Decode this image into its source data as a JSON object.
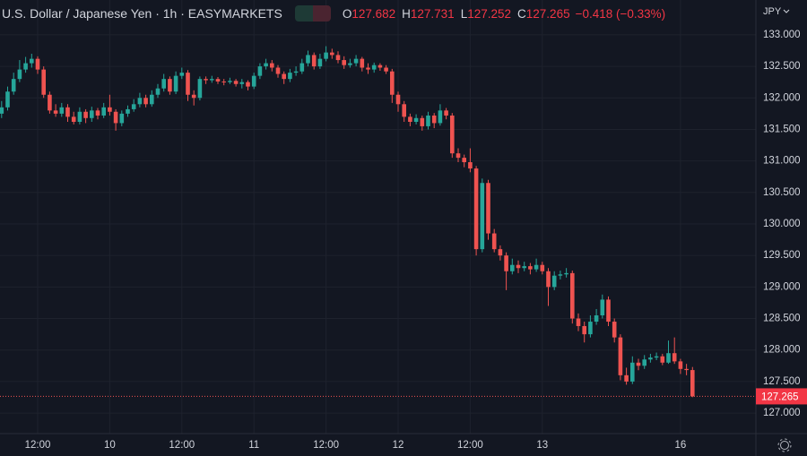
{
  "chart_data": {
    "type": "candlestick",
    "title": "U.S. Dollar / Japanese Yen · 1h · EASYMARKETS",
    "ohlc_letters": [
      "O",
      "H",
      "L",
      "C"
    ],
    "change": "−0.418 (−0.33%)",
    "currency": "JPY",
    "up_color": "#26a69a",
    "down_color": "#ef5350",
    "grid": true,
    "ylim": [
      126.674,
      133.553
    ],
    "yticks": [
      {
        "value": 127,
        "label": "127.000"
      },
      {
        "value": 127.5,
        "label": "127.500"
      },
      {
        "value": 128,
        "label": "128.000"
      },
      {
        "value": 128.5,
        "label": "128.500"
      },
      {
        "value": 129,
        "label": "129.000"
      },
      {
        "value": 129.5,
        "label": "129.500"
      },
      {
        "value": 130,
        "label": "130.000"
      },
      {
        "value": 130.5,
        "label": "130.500"
      },
      {
        "value": 131,
        "label": "131.000"
      },
      {
        "value": 131.5,
        "label": "131.500"
      },
      {
        "value": 132,
        "label": "132.000"
      },
      {
        "value": 132.5,
        "label": "132.500"
      },
      {
        "value": 133,
        "label": "133.000"
      }
    ],
    "categories": [
      null,
      null,
      null,
      null,
      null,
      null,
      "12:00",
      null,
      null,
      null,
      null,
      null,
      null,
      null,
      null,
      null,
      null,
      null,
      "10",
      null,
      null,
      null,
      null,
      null,
      null,
      null,
      null,
      null,
      null,
      null,
      "12:00",
      null,
      null,
      null,
      null,
      null,
      null,
      null,
      null,
      null,
      null,
      null,
      "11",
      null,
      null,
      null,
      null,
      null,
      null,
      null,
      null,
      null,
      null,
      null,
      "12:00",
      null,
      null,
      null,
      null,
      null,
      null,
      null,
      null,
      null,
      null,
      null,
      "12",
      null,
      null,
      null,
      null,
      null,
      null,
      null,
      null,
      null,
      null,
      null,
      "12:00",
      null,
      null,
      null,
      null,
      null,
      null,
      null,
      null,
      null,
      null,
      null,
      "13",
      null,
      null,
      null,
      null,
      null,
      null,
      null,
      null,
      null,
      null,
      null,
      null,
      null,
      null,
      null,
      null,
      null,
      null,
      null,
      null,
      null,
      null,
      "16",
      null,
      null
    ],
    "open": [
      131.75,
      131.85,
      132.1,
      132.3,
      132.45,
      132.55,
      132.62,
      132.45,
      132.05,
      131.8,
      131.75,
      131.85,
      131.7,
      131.62,
      131.78,
      131.68,
      131.8,
      131.72,
      131.85,
      131.78,
      131.6,
      131.75,
      131.82,
      131.9,
      132.0,
      131.9,
      132.05,
      132.15,
      132.3,
      132.1,
      132.35,
      132.4,
      132.05,
      132.0,
      132.3,
      132.28,
      132.3,
      132.26,
      132.25,
      132.27,
      132.22,
      132.25,
      132.18,
      132.35,
      132.5,
      132.55,
      132.48,
      132.38,
      132.3,
      132.4,
      132.42,
      132.55,
      132.68,
      132.5,
      132.62,
      132.72,
      132.68,
      132.6,
      132.52,
      132.55,
      132.62,
      132.48,
      132.45,
      132.52,
      132.48,
      132.42,
      132.05,
      131.9,
      131.7,
      131.62,
      131.68,
      131.55,
      131.72,
      131.6,
      131.8,
      131.72,
      131.12,
      131.05,
      130.98,
      130.88,
      129.6,
      130.65,
      129.85,
      129.6,
      129.5,
      129.25,
      129.35,
      129.3,
      129.33,
      129.28,
      129.35,
      129.25,
      129.0,
      129.18,
      129.2,
      129.22,
      128.5,
      128.38,
      128.25,
      128.45,
      128.55,
      128.8,
      128.45,
      128.2,
      127.6,
      127.5,
      127.8,
      127.75,
      127.85,
      127.88,
      127.9,
      127.8,
      127.95,
      127.82,
      127.7,
      127.682
    ],
    "high": [
      131.95,
      132.18,
      132.4,
      132.6,
      132.65,
      132.7,
      132.66,
      132.5,
      132.1,
      131.9,
      131.92,
      131.9,
      131.78,
      131.85,
      131.82,
      131.86,
      131.84,
      131.92,
      132.05,
      131.82,
      131.8,
      131.88,
      131.98,
      132.08,
      132.05,
      132.12,
      132.22,
      132.38,
      132.34,
      132.42,
      132.48,
      132.44,
      132.12,
      132.34,
      132.34,
      132.35,
      132.33,
      132.3,
      132.32,
      132.3,
      132.3,
      132.28,
      132.4,
      132.55,
      132.62,
      132.6,
      132.52,
      132.42,
      132.46,
      132.5,
      132.62,
      132.75,
      132.72,
      132.7,
      132.82,
      132.78,
      132.74,
      132.66,
      132.62,
      132.68,
      132.65,
      132.55,
      132.56,
      132.55,
      132.52,
      132.46,
      132.1,
      131.95,
      131.75,
      131.74,
      131.72,
      131.78,
      131.76,
      131.9,
      131.84,
      131.76,
      131.2,
      131.1,
      131.2,
      130.92,
      130.72,
      130.7,
      129.92,
      129.66,
      129.55,
      129.45,
      129.42,
      129.4,
      129.38,
      129.45,
      129.4,
      129.3,
      129.25,
      129.26,
      129.3,
      129.26,
      128.58,
      128.45,
      128.55,
      128.65,
      128.88,
      128.85,
      128.5,
      128.25,
      127.72,
      127.9,
      127.86,
      127.92,
      127.94,
      127.96,
      127.94,
      128.15,
      128.2,
      127.86,
      127.78,
      127.731
    ],
    "low": [
      131.68,
      131.8,
      132.05,
      132.25,
      132.4,
      132.48,
      132.38,
      132.0,
      131.75,
      131.7,
      131.7,
      131.62,
      131.58,
      131.58,
      131.6,
      131.62,
      131.66,
      131.68,
      131.72,
      131.48,
      131.55,
      131.7,
      131.78,
      131.85,
      131.85,
      131.86,
      132.0,
      132.1,
      132.05,
      132.06,
      132.3,
      131.95,
      131.88,
      131.96,
      132.22,
      132.24,
      132.22,
      132.2,
      132.22,
      132.18,
      132.15,
      132.12,
      132.14,
      132.3,
      132.45,
      132.42,
      132.32,
      132.22,
      132.25,
      132.35,
      132.38,
      132.5,
      132.45,
      132.46,
      132.58,
      132.62,
      132.55,
      132.46,
      132.48,
      132.5,
      132.42,
      132.38,
      132.4,
      132.43,
      132.38,
      131.92,
      131.78,
      131.62,
      131.55,
      131.58,
      131.48,
      131.5,
      131.52,
      131.56,
      131.66,
      131.05,
      130.98,
      130.9,
      130.82,
      129.5,
      129.55,
      129.75,
      129.55,
      129.42,
      128.95,
      129.2,
      129.22,
      129.25,
      129.2,
      129.24,
      129.2,
      128.7,
      128.95,
      129.12,
      129.15,
      128.42,
      128.3,
      128.12,
      128.2,
      128.4,
      128.5,
      128.38,
      128.12,
      127.52,
      127.45,
      127.46,
      127.68,
      127.7,
      127.8,
      127.84,
      127.76,
      127.78,
      127.78,
      127.62,
      127.6,
      127.252
    ],
    "close": [
      131.85,
      132.1,
      132.3,
      132.45,
      132.55,
      132.62,
      132.45,
      132.05,
      131.8,
      131.75,
      131.85,
      131.7,
      131.62,
      131.78,
      131.68,
      131.8,
      131.72,
      131.85,
      131.78,
      131.6,
      131.75,
      131.82,
      131.9,
      132.0,
      131.9,
      132.05,
      132.15,
      132.3,
      132.1,
      132.35,
      132.4,
      132.05,
      132.0,
      132.3,
      132.28,
      132.3,
      132.26,
      132.25,
      132.27,
      132.22,
      132.25,
      132.18,
      132.35,
      132.5,
      132.55,
      132.48,
      132.38,
      132.3,
      132.4,
      132.42,
      132.55,
      132.68,
      132.5,
      132.62,
      132.72,
      132.68,
      132.6,
      132.52,
      132.55,
      132.62,
      132.48,
      132.45,
      132.52,
      132.48,
      132.42,
      132.05,
      131.9,
      131.7,
      131.62,
      131.68,
      131.55,
      131.72,
      131.6,
      131.8,
      131.72,
      131.12,
      131.05,
      130.98,
      130.88,
      129.6,
      130.65,
      129.85,
      129.6,
      129.5,
      129.25,
      129.35,
      129.3,
      129.33,
      129.28,
      129.35,
      129.25,
      129.0,
      129.18,
      129.2,
      129.22,
      128.5,
      128.38,
      128.25,
      128.45,
      128.55,
      128.8,
      128.45,
      128.2,
      127.6,
      127.5,
      127.8,
      127.75,
      127.85,
      127.88,
      127.9,
      127.8,
      127.95,
      127.82,
      127.7,
      127.682,
      127.265
    ]
  }
}
